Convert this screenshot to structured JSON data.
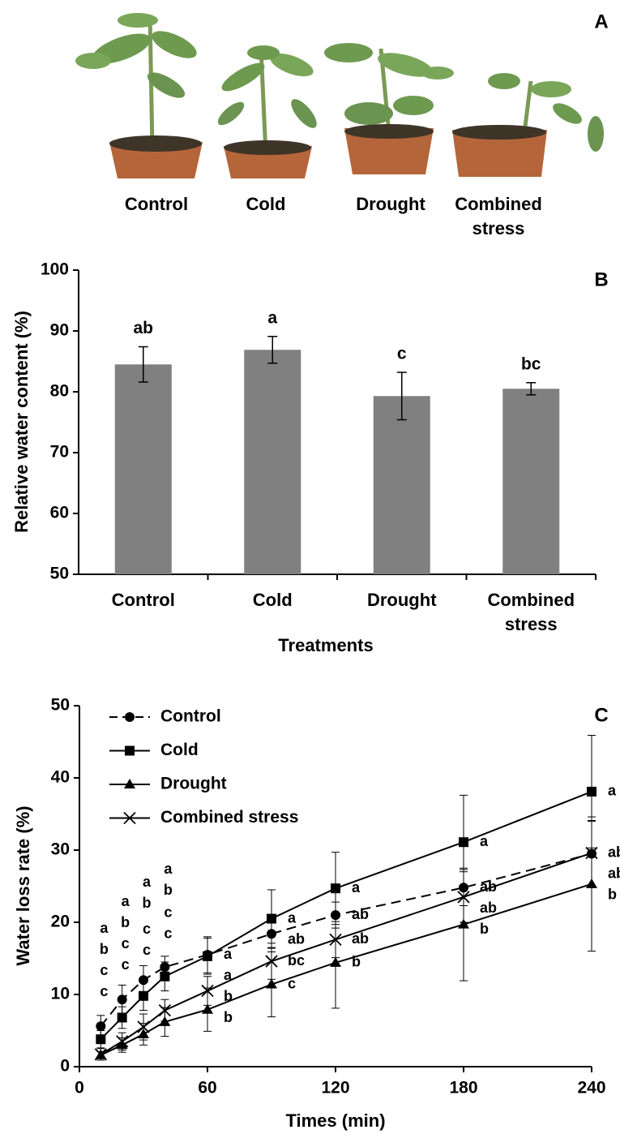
{
  "panel_a": {
    "label": "A",
    "treatments": [
      "Control",
      "Cold",
      "Drought",
      "Combined stress"
    ]
  },
  "chart_data": [
    {
      "type": "bar",
      "panel_label": "B",
      "ylabel": "Relative water content (%)",
      "xlabel": "Treatments",
      "categories": [
        "Control",
        "Cold",
        "Drought",
        "Combined stress"
      ],
      "values": [
        84.5,
        86.9,
        79.3,
        80.5
      ],
      "errors": [
        2.9,
        2.2,
        3.9,
        1.0
      ],
      "letters": [
        "ab",
        "a",
        "c",
        "bc"
      ],
      "color": "#808080",
      "ylim": [
        50,
        100
      ],
      "yticks": [
        50,
        60,
        70,
        80,
        90,
        100
      ]
    },
    {
      "type": "line",
      "panel_label": "C",
      "ylabel": "Water loss rate (%)",
      "xlabel": "Times (min)",
      "x": [
        10,
        20,
        30,
        40,
        60,
        90,
        120,
        180,
        240
      ],
      "xlim": [
        0,
        240
      ],
      "xticks": [
        0,
        60,
        120,
        180,
        240
      ],
      "ylim": [
        0,
        50
      ],
      "yticks": [
        0,
        10,
        20,
        30,
        40,
        50
      ],
      "legend": "upper left",
      "series": [
        {
          "name": "Control",
          "color": "#000000",
          "marker": "circle",
          "linestyle": "dashed",
          "values": [
            5.6,
            9.3,
            12.0,
            13.8,
            15.5,
            18.4,
            21.0,
            24.8,
            29.5
          ],
          "errors": [
            1.5,
            2.0,
            2.0,
            1.5,
            2.5,
            2.0,
            1.8,
            2.5,
            4.5
          ],
          "letters": [
            "a",
            "a",
            "a",
            "a",
            "a",
            "ab",
            "ab",
            "ab",
            "ab"
          ]
        },
        {
          "name": "Cold",
          "color": "#000000",
          "marker": "square",
          "linestyle": "solid",
          "values": [
            3.8,
            6.8,
            9.8,
            12.5,
            15.3,
            20.5,
            24.7,
            31.1,
            38.1
          ],
          "errors": [
            1.2,
            1.5,
            2.0,
            2.0,
            2.5,
            4.0,
            5.0,
            6.5,
            7.8
          ],
          "letters": [
            "b",
            "b",
            "b",
            "b",
            "a",
            "a",
            "a",
            "a",
            "a"
          ]
        },
        {
          "name": "Drought",
          "color": "#000000",
          "marker": "triangle",
          "linestyle": "solid",
          "values": [
            1.6,
            3.0,
            4.5,
            6.2,
            7.9,
            11.4,
            14.4,
            19.7,
            25.3
          ],
          "errors": [
            0.5,
            1.0,
            1.5,
            2.0,
            3.0,
            4.5,
            6.3,
            7.8,
            9.3
          ],
          "letters": [
            "c",
            "c",
            "c",
            "c",
            "b",
            "c",
            "b",
            "b",
            "b"
          ]
        },
        {
          "name": "Combined stress",
          "color": "#000000",
          "marker": "x",
          "linestyle": "solid",
          "values": [
            1.7,
            3.5,
            5.5,
            7.8,
            10.5,
            14.6,
            17.6,
            23.5,
            29.6
          ],
          "errors": [
            0.8,
            1.2,
            1.8,
            1.5,
            2.0,
            2.5,
            2.5,
            3.5,
            4.5
          ],
          "letters": [
            "c",
            "c",
            "c",
            "c",
            "b",
            "bc",
            "ab",
            "ab",
            "ab"
          ]
        }
      ]
    }
  ]
}
